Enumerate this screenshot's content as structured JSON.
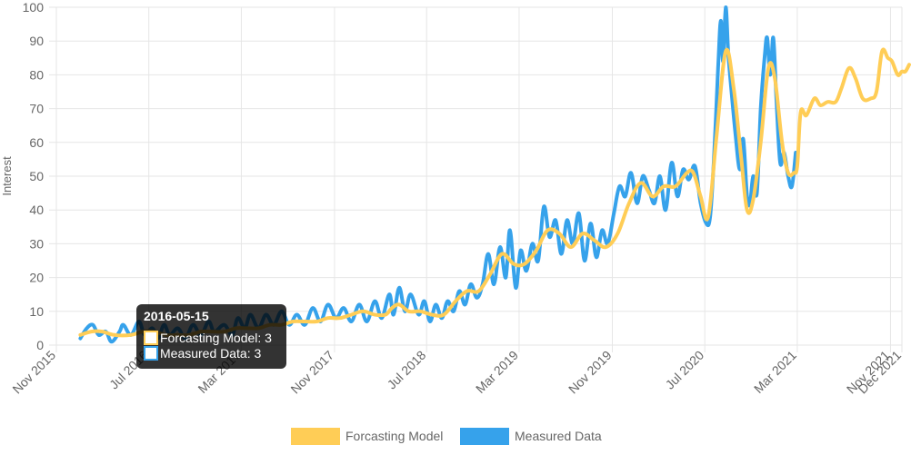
{
  "chart_data": {
    "type": "line",
    "xlabel": "",
    "ylabel": "Interest",
    "ylim": [
      0,
      100
    ],
    "y_ticks": [
      0,
      10,
      20,
      30,
      40,
      50,
      60,
      70,
      80,
      90,
      100
    ],
    "x_ticks": [
      {
        "date": "2015-11-01",
        "label": "Nov 2015"
      },
      {
        "date": "2016-07-01",
        "label": "Jul 2016"
      },
      {
        "date": "2017-03-01",
        "label": "Mar 2017"
      },
      {
        "date": "2017-11-01",
        "label": "Nov 2017"
      },
      {
        "date": "2018-07-01",
        "label": "Jul 2018"
      },
      {
        "date": "2019-03-01",
        "label": "Mar 2019"
      },
      {
        "date": "2019-11-01",
        "label": "Nov 2019"
      },
      {
        "date": "2020-07-01",
        "label": "Jul 2020"
      },
      {
        "date": "2021-03-01",
        "label": "Mar 2021"
      },
      {
        "date": "2021-11-01",
        "label": "Nov 2021"
      },
      {
        "date": "2021-12-01",
        "label": "Dec 2021"
      }
    ],
    "grid": true,
    "legend_position": "bottom",
    "series": [
      {
        "name": "Forcasting Model",
        "color": "#ffcd56",
        "points": [
          [
            "2016-01-03",
            3
          ],
          [
            "2016-02-01",
            4
          ],
          [
            "2016-03-01",
            4
          ],
          [
            "2016-04-01",
            3
          ],
          [
            "2016-05-15",
            3
          ],
          [
            "2016-06-15",
            4
          ],
          [
            "2016-07-15",
            4
          ],
          [
            "2016-08-15",
            3
          ],
          [
            "2016-09-15",
            3
          ],
          [
            "2016-10-15",
            3
          ],
          [
            "2016-11-15",
            4
          ],
          [
            "2016-12-15",
            4
          ],
          [
            "2017-01-15",
            4
          ],
          [
            "2017-02-15",
            5
          ],
          [
            "2017-03-15",
            5
          ],
          [
            "2017-04-15",
            5
          ],
          [
            "2017-05-15",
            6
          ],
          [
            "2017-06-15",
            6
          ],
          [
            "2017-07-15",
            7
          ],
          [
            "2017-08-15",
            7
          ],
          [
            "2017-09-15",
            7
          ],
          [
            "2017-10-15",
            8
          ],
          [
            "2017-11-15",
            8
          ],
          [
            "2017-12-15",
            9
          ],
          [
            "2018-01-15",
            10
          ],
          [
            "2018-02-15",
            9
          ],
          [
            "2018-03-15",
            9
          ],
          [
            "2018-04-01",
            11
          ],
          [
            "2018-04-20",
            12
          ],
          [
            "2018-05-15",
            10
          ],
          [
            "2018-06-15",
            10
          ],
          [
            "2018-07-15",
            9
          ],
          [
            "2018-08-15",
            9
          ],
          [
            "2018-09-15",
            13
          ],
          [
            "2018-10-15",
            16
          ],
          [
            "2018-11-15",
            16
          ],
          [
            "2018-12-15",
            21
          ],
          [
            "2019-01-15",
            27
          ],
          [
            "2019-02-15",
            24
          ],
          [
            "2019-03-15",
            24
          ],
          [
            "2019-04-15",
            28
          ],
          [
            "2019-05-15",
            34
          ],
          [
            "2019-06-15",
            33
          ],
          [
            "2019-07-15",
            29
          ],
          [
            "2019-08-15",
            33
          ],
          [
            "2019-09-15",
            31
          ],
          [
            "2019-10-15",
            29
          ],
          [
            "2019-11-15",
            33
          ],
          [
            "2019-12-15",
            42
          ],
          [
            "2020-01-15",
            48
          ],
          [
            "2020-02-15",
            44
          ],
          [
            "2020-03-15",
            47
          ],
          [
            "2020-04-15",
            47
          ],
          [
            "2020-05-15",
            51
          ],
          [
            "2020-06-01",
            51
          ],
          [
            "2020-06-20",
            44
          ],
          [
            "2020-07-10",
            38
          ],
          [
            "2020-08-01",
            62
          ],
          [
            "2020-08-25",
            87
          ],
          [
            "2020-09-15",
            76
          ],
          [
            "2020-10-05",
            55
          ],
          [
            "2020-10-20",
            40
          ],
          [
            "2020-11-05",
            43
          ],
          [
            "2020-11-25",
            60
          ],
          [
            "2020-12-15",
            82
          ],
          [
            "2021-01-01",
            79
          ],
          [
            "2021-01-20",
            60
          ],
          [
            "2021-02-05",
            51
          ],
          [
            "2021-02-20",
            51
          ],
          [
            "2021-03-01",
            53
          ],
          [
            "2021-03-10",
            69
          ],
          [
            "2021-03-25",
            68
          ],
          [
            "2021-04-15",
            73
          ],
          [
            "2021-05-01",
            71
          ],
          [
            "2021-05-20",
            72
          ],
          [
            "2021-06-10",
            72
          ],
          [
            "2021-06-25",
            76
          ],
          [
            "2021-07-15",
            82
          ],
          [
            "2021-08-01",
            79
          ],
          [
            "2021-08-20",
            73
          ],
          [
            "2021-09-10",
            73
          ],
          [
            "2021-09-25",
            75
          ],
          [
            "2021-10-10",
            87
          ],
          [
            "2021-10-25",
            85
          ],
          [
            "2021-11-05",
            84
          ],
          [
            "2021-11-20",
            80
          ],
          [
            "2021-12-01",
            81
          ],
          [
            "2021-12-10",
            81
          ],
          [
            "2021-12-20",
            83
          ]
        ]
      },
      {
        "name": "Measured Data",
        "color": "#36a2eb",
        "points": [
          [
            "2016-01-03",
            2
          ],
          [
            "2016-01-20",
            5
          ],
          [
            "2016-02-05",
            6
          ],
          [
            "2016-02-20",
            3
          ],
          [
            "2016-03-10",
            4
          ],
          [
            "2016-03-25",
            1
          ],
          [
            "2016-04-15",
            4
          ],
          [
            "2016-04-25",
            6
          ],
          [
            "2016-05-15",
            3
          ],
          [
            "2016-06-05",
            7
          ],
          [
            "2016-06-20",
            3
          ],
          [
            "2016-07-10",
            5
          ],
          [
            "2016-07-25",
            2
          ],
          [
            "2016-08-10",
            6
          ],
          [
            "2016-08-25",
            3
          ],
          [
            "2016-09-15",
            5
          ],
          [
            "2016-10-05",
            2
          ],
          [
            "2016-10-25",
            6
          ],
          [
            "2016-11-15",
            3
          ],
          [
            "2016-12-05",
            7
          ],
          [
            "2016-12-20",
            4
          ],
          [
            "2017-01-15",
            6
          ],
          [
            "2017-02-05",
            3
          ],
          [
            "2017-02-20",
            8
          ],
          [
            "2017-03-10",
            5
          ],
          [
            "2017-03-25",
            9
          ],
          [
            "2017-04-15",
            5
          ],
          [
            "2017-05-05",
            9
          ],
          [
            "2017-05-25",
            6
          ],
          [
            "2017-06-15",
            10
          ],
          [
            "2017-07-05",
            6
          ],
          [
            "2017-07-25",
            9
          ],
          [
            "2017-08-15",
            6
          ],
          [
            "2017-09-05",
            11
          ],
          [
            "2017-09-25",
            7
          ],
          [
            "2017-10-15",
            12
          ],
          [
            "2017-11-05",
            8
          ],
          [
            "2017-11-25",
            11
          ],
          [
            "2017-12-15",
            7
          ],
          [
            "2018-01-05",
            12
          ],
          [
            "2018-01-25",
            7
          ],
          [
            "2018-02-15",
            13
          ],
          [
            "2018-03-05",
            8
          ],
          [
            "2018-03-25",
            15
          ],
          [
            "2018-04-05",
            9
          ],
          [
            "2018-04-20",
            17
          ],
          [
            "2018-05-05",
            10
          ],
          [
            "2018-05-20",
            15
          ],
          [
            "2018-06-10",
            9
          ],
          [
            "2018-06-25",
            13
          ],
          [
            "2018-07-10",
            7
          ],
          [
            "2018-07-25",
            12
          ],
          [
            "2018-08-10",
            8
          ],
          [
            "2018-08-25",
            13
          ],
          [
            "2018-09-10",
            10
          ],
          [
            "2018-09-25",
            16
          ],
          [
            "2018-10-10",
            12
          ],
          [
            "2018-10-25",
            18
          ],
          [
            "2018-11-10",
            14
          ],
          [
            "2018-11-25",
            18
          ],
          [
            "2018-12-10",
            27
          ],
          [
            "2018-12-25",
            18
          ],
          [
            "2019-01-10",
            29
          ],
          [
            "2019-01-25",
            20
          ],
          [
            "2019-02-05",
            34
          ],
          [
            "2019-02-20",
            17
          ],
          [
            "2019-03-05",
            28
          ],
          [
            "2019-03-20",
            22
          ],
          [
            "2019-04-05",
            30
          ],
          [
            "2019-04-20",
            25
          ],
          [
            "2019-05-05",
            41
          ],
          [
            "2019-05-20",
            32
          ],
          [
            "2019-06-05",
            37
          ],
          [
            "2019-06-20",
            27
          ],
          [
            "2019-07-05",
            37
          ],
          [
            "2019-07-20",
            30
          ],
          [
            "2019-08-05",
            39
          ],
          [
            "2019-08-20",
            25
          ],
          [
            "2019-09-05",
            36
          ],
          [
            "2019-09-20",
            26
          ],
          [
            "2019-10-05",
            34
          ],
          [
            "2019-10-20",
            30
          ],
          [
            "2019-11-05",
            39
          ],
          [
            "2019-11-20",
            47
          ],
          [
            "2019-12-05",
            44
          ],
          [
            "2019-12-20",
            51
          ],
          [
            "2020-01-05",
            42
          ],
          [
            "2020-01-20",
            50
          ],
          [
            "2020-02-05",
            46
          ],
          [
            "2020-02-20",
            42
          ],
          [
            "2020-03-05",
            50
          ],
          [
            "2020-03-20",
            40
          ],
          [
            "2020-04-05",
            54
          ],
          [
            "2020-04-20",
            44
          ],
          [
            "2020-05-05",
            52
          ],
          [
            "2020-05-20",
            49
          ],
          [
            "2020-06-05",
            53
          ],
          [
            "2020-06-20",
            42
          ],
          [
            "2020-07-05",
            36
          ],
          [
            "2020-07-15",
            38
          ],
          [
            "2020-07-25",
            55
          ],
          [
            "2020-08-05",
            82
          ],
          [
            "2020-08-12",
            96
          ],
          [
            "2020-08-18",
            84
          ],
          [
            "2020-08-25",
            100
          ],
          [
            "2020-09-01",
            86
          ],
          [
            "2020-09-10",
            74
          ],
          [
            "2020-09-20",
            62
          ],
          [
            "2020-10-01",
            52
          ],
          [
            "2020-10-10",
            61
          ],
          [
            "2020-10-20",
            44
          ],
          [
            "2020-10-28",
            42
          ],
          [
            "2020-11-05",
            50
          ],
          [
            "2020-11-15",
            45
          ],
          [
            "2020-11-25",
            70
          ],
          [
            "2020-12-05",
            85
          ],
          [
            "2020-12-12",
            91
          ],
          [
            "2020-12-20",
            80
          ],
          [
            "2020-12-28",
            91
          ],
          [
            "2021-01-05",
            73
          ],
          [
            "2021-01-15",
            54
          ],
          [
            "2021-01-25",
            57
          ],
          [
            "2021-02-05",
            50
          ],
          [
            "2021-02-15",
            47
          ],
          [
            "2021-02-25",
            57
          ]
        ]
      }
    ],
    "tooltip": {
      "title": "2016-05-15",
      "lines": [
        {
          "label": "Forcasting Model: 3",
          "series": 0
        },
        {
          "label": "Measured Data: 3",
          "series": 1
        }
      ]
    }
  }
}
